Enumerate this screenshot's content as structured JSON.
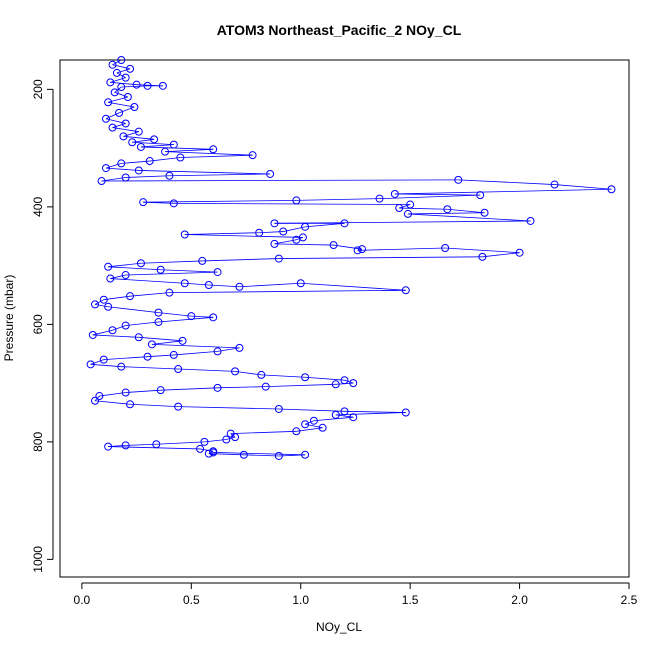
{
  "chart_data": {
    "type": "scatter",
    "title": "ATOM3 Northeast_Pacific_2 NOy_CL",
    "xlabel": "NOy_CL",
    "ylabel": "Pressure (mbar)",
    "xlim": [
      -0.1,
      2.5
    ],
    "ylim": [
      1030,
      150
    ],
    "y_inverted": true,
    "x_ticks": [
      0,
      0.5,
      1,
      1.5,
      2,
      2.5
    ],
    "x_tick_labels": [
      "0.0",
      "0.5",
      "1.0",
      "1.5",
      "2.0",
      "2.5"
    ],
    "y_ticks": [
      200,
      400,
      600,
      800,
      1000
    ],
    "y_tick_labels": [
      "200",
      "400",
      "600",
      "800",
      "1000"
    ],
    "marker": "open-circle",
    "connected": true,
    "grid": false,
    "series": [
      {
        "color": "#0000ff",
        "points": [
          [
            0.18,
            150
          ],
          [
            0.14,
            158
          ],
          [
            0.22,
            165
          ],
          [
            0.16,
            172
          ],
          [
            0.2,
            180
          ],
          [
            0.13,
            188
          ],
          [
            0.25,
            192
          ],
          [
            0.37,
            194
          ],
          [
            0.3,
            194
          ],
          [
            0.18,
            196
          ],
          [
            0.15,
            205
          ],
          [
            0.21,
            213
          ],
          [
            0.12,
            222
          ],
          [
            0.24,
            230
          ],
          [
            0.17,
            240
          ],
          [
            0.11,
            250
          ],
          [
            0.2,
            258
          ],
          [
            0.14,
            265
          ],
          [
            0.26,
            272
          ],
          [
            0.19,
            280
          ],
          [
            0.33,
            285
          ],
          [
            0.23,
            290
          ],
          [
            0.42,
            294
          ],
          [
            0.27,
            298
          ],
          [
            0.6,
            302
          ],
          [
            0.38,
            306
          ],
          [
            0.78,
            312
          ],
          [
            0.45,
            316
          ],
          [
            0.31,
            322
          ],
          [
            0.18,
            326
          ],
          [
            0.11,
            334
          ],
          [
            0.26,
            338
          ],
          [
            0.86,
            344
          ],
          [
            0.4,
            347
          ],
          [
            0.2,
            350
          ],
          [
            0.09,
            356
          ],
          [
            1.72,
            354
          ],
          [
            2.16,
            362
          ],
          [
            2.42,
            370
          ],
          [
            1.43,
            378
          ],
          [
            1.82,
            380
          ],
          [
            1.36,
            386
          ],
          [
            0.98,
            389
          ],
          [
            0.28,
            392
          ],
          [
            0.42,
            394
          ],
          [
            1.5,
            396
          ],
          [
            1.45,
            402
          ],
          [
            1.67,
            404
          ],
          [
            1.84,
            410
          ],
          [
            1.49,
            412
          ],
          [
            2.05,
            424
          ],
          [
            0.88,
            428
          ],
          [
            1.2,
            428
          ],
          [
            1.02,
            434
          ],
          [
            0.92,
            442
          ],
          [
            0.81,
            444
          ],
          [
            0.47,
            447
          ],
          [
            1.01,
            452
          ],
          [
            0.98,
            456
          ],
          [
            0.88,
            463
          ],
          [
            1.15,
            465
          ],
          [
            1.28,
            472
          ],
          [
            1.26,
            474
          ],
          [
            1.66,
            470
          ],
          [
            2.0,
            478
          ],
          [
            1.83,
            485
          ],
          [
            0.9,
            488
          ],
          [
            0.55,
            492
          ],
          [
            0.27,
            496
          ],
          [
            0.12,
            502
          ],
          [
            0.36,
            507
          ],
          [
            0.62,
            511
          ],
          [
            0.2,
            516
          ],
          [
            0.13,
            522
          ],
          [
            0.47,
            530
          ],
          [
            0.58,
            533
          ],
          [
            0.72,
            536
          ],
          [
            1.0,
            530
          ],
          [
            1.48,
            542
          ],
          [
            0.4,
            546
          ],
          [
            0.22,
            552
          ],
          [
            0.1,
            558
          ],
          [
            0.06,
            566
          ],
          [
            0.12,
            570
          ],
          [
            0.35,
            580
          ],
          [
            0.5,
            586
          ],
          [
            0.6,
            588
          ],
          [
            0.35,
            596
          ],
          [
            0.2,
            602
          ],
          [
            0.14,
            610
          ],
          [
            0.05,
            618
          ],
          [
            0.26,
            622
          ],
          [
            0.46,
            628
          ],
          [
            0.32,
            634
          ],
          [
            0.72,
            640
          ],
          [
            0.62,
            646
          ],
          [
            0.42,
            652
          ],
          [
            0.3,
            655
          ],
          [
            0.1,
            660
          ],
          [
            0.04,
            668
          ],
          [
            0.18,
            672
          ],
          [
            0.44,
            676
          ],
          [
            0.7,
            680
          ],
          [
            0.82,
            686
          ],
          [
            1.02,
            690
          ],
          [
            1.2,
            695
          ],
          [
            1.24,
            700
          ],
          [
            1.16,
            702
          ],
          [
            0.84,
            706
          ],
          [
            0.62,
            708
          ],
          [
            0.36,
            712
          ],
          [
            0.2,
            716
          ],
          [
            0.08,
            722
          ],
          [
            0.06,
            730
          ],
          [
            0.22,
            736
          ],
          [
            0.44,
            740
          ],
          [
            0.9,
            744
          ],
          [
            1.2,
            748
          ],
          [
            1.48,
            750
          ],
          [
            1.16,
            754
          ],
          [
            1.24,
            758
          ],
          [
            1.06,
            764
          ],
          [
            1.02,
            770
          ],
          [
            1.1,
            776
          ],
          [
            0.98,
            782
          ],
          [
            0.68,
            786
          ],
          [
            0.7,
            792
          ],
          [
            0.66,
            796
          ],
          [
            0.56,
            800
          ],
          [
            0.34,
            804
          ],
          [
            0.2,
            806
          ],
          [
            0.12,
            808
          ],
          [
            0.54,
            812
          ],
          [
            0.6,
            816
          ],
          [
            0.58,
            820
          ],
          [
            0.74,
            822
          ],
          [
            0.9,
            824
          ],
          [
            1.02,
            822
          ],
          [
            0.6,
            818
          ]
        ]
      }
    ]
  }
}
